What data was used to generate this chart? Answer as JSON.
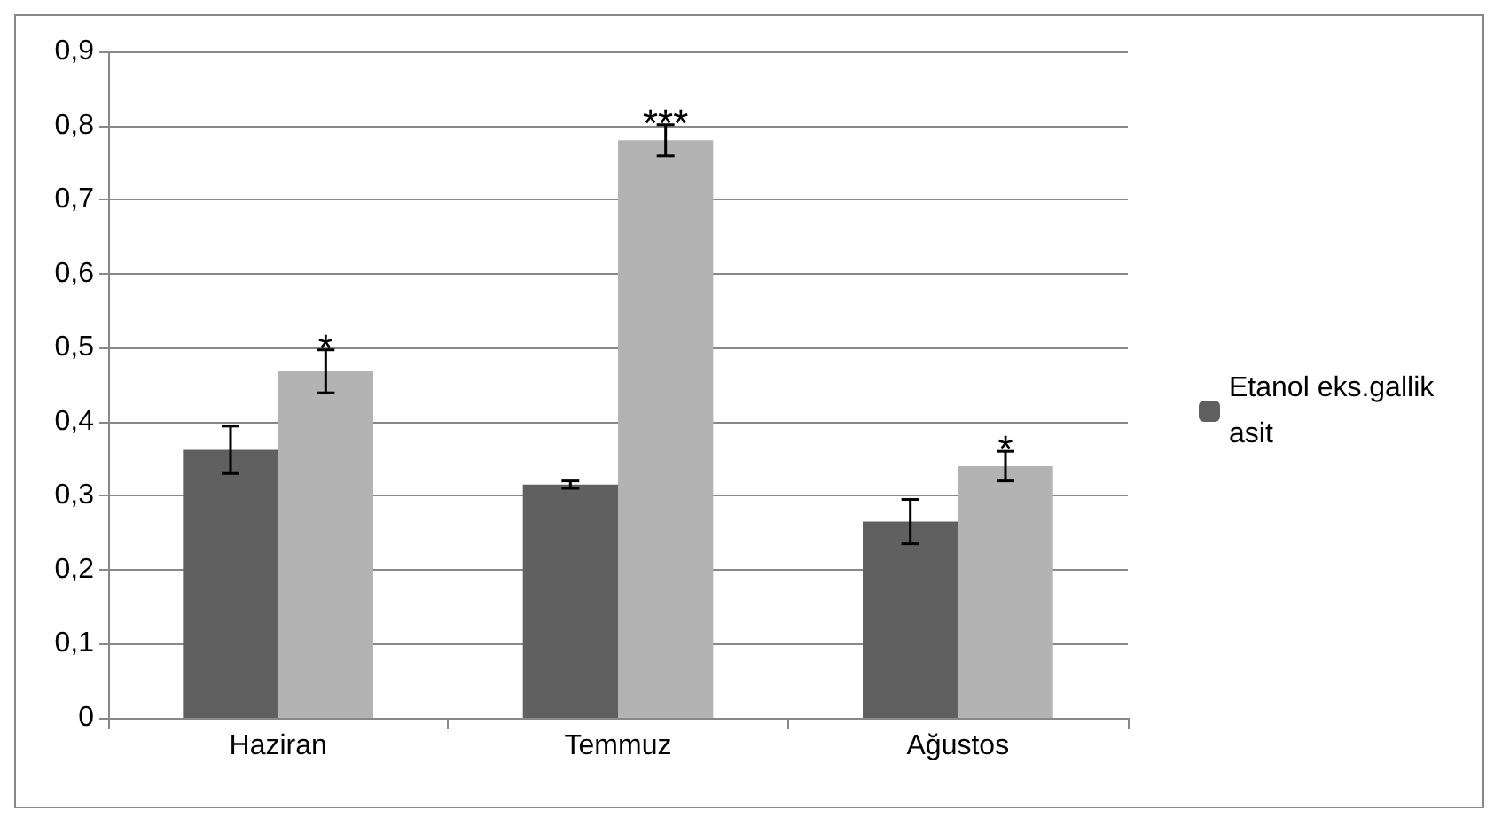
{
  "chart_data": {
    "type": "bar",
    "categories": [
      "Haziran",
      "Temmuz",
      "Ağustos"
    ],
    "series": [
      {
        "name": "Etanol eks.gallik asit",
        "color": "#606060",
        "values": [
          0.362,
          0.315,
          0.265
        ],
        "errors": [
          0.032,
          0.005,
          0.03
        ]
      },
      {
        "color": "#b3b3b3",
        "values": [
          0.468,
          0.78,
          0.34
        ],
        "errors": [
          0.029,
          0.021,
          0.02
        ]
      }
    ],
    "ylim": [
      0,
      0.9
    ],
    "yticks": [
      {
        "value": 0,
        "label": "0"
      },
      {
        "value": 0.1,
        "label": "0,1"
      },
      {
        "value": 0.2,
        "label": "0,2"
      },
      {
        "value": 0.3,
        "label": "0,3"
      },
      {
        "value": 0.4,
        "label": "0,4"
      },
      {
        "value": 0.5,
        "label": "0,5"
      },
      {
        "value": 0.6,
        "label": "0,6"
      },
      {
        "value": 0.7,
        "label": "0,7"
      },
      {
        "value": 0.8,
        "label": "0,8"
      },
      {
        "value": 0.9,
        "label": "0,9"
      }
    ],
    "grid": "y",
    "legend": "right",
    "annotations": [
      {
        "text": "*",
        "x": "Haziran",
        "y": 0.468
      },
      {
        "text": "***",
        "x": "Temmuz",
        "y": 0.78
      },
      {
        "text": "*",
        "x": "Ağustos",
        "y": 0.34
      }
    ]
  }
}
